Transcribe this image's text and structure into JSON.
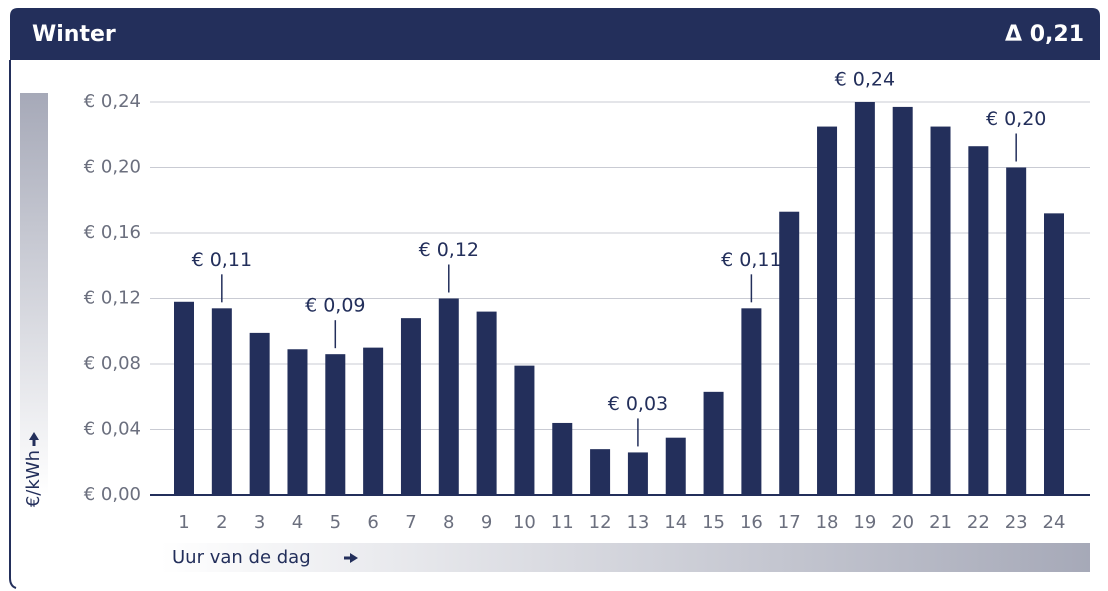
{
  "chart_data": {
    "type": "bar",
    "title": "Winter",
    "delta": "Δ 0,21",
    "ylabel": "€/kWh",
    "xlabel": "Uur van de dag",
    "categories": [
      "1",
      "2",
      "3",
      "4",
      "5",
      "6",
      "7",
      "8",
      "9",
      "10",
      "11",
      "12",
      "13",
      "14",
      "15",
      "16",
      "17",
      "18",
      "19",
      "20",
      "21",
      "22",
      "23",
      "24"
    ],
    "values": [
      0.118,
      0.114,
      0.099,
      0.089,
      0.086,
      0.09,
      0.108,
      0.12,
      0.112,
      0.079,
      0.044,
      0.028,
      0.026,
      0.035,
      0.063,
      0.114,
      0.173,
      0.225,
      0.24,
      0.237,
      0.225,
      0.213,
      0.2,
      0.172
    ],
    "value_labels": [
      null,
      "€ 0,11",
      null,
      null,
      "€ 0,09",
      null,
      null,
      "€ 0,12",
      null,
      null,
      null,
      null,
      "€ 0,03",
      null,
      null,
      "€ 0,11",
      null,
      null,
      "€ 0,24",
      null,
      null,
      null,
      "€ 0,20",
      null
    ],
    "color": "#232f5b",
    "ylim": [
      0,
      0.24
    ],
    "yticks": [
      {
        "value": 0,
        "label": "€ 0,00"
      },
      {
        "value": 0.04,
        "label": "€ 0,04"
      },
      {
        "value": 0.08,
        "label": "€ 0,08"
      },
      {
        "value": 0.12,
        "label": "€ 0,12"
      },
      {
        "value": 0.16,
        "label": "€ 0,16"
      },
      {
        "value": 0.2,
        "label": "€ 0,20"
      },
      {
        "value": 0.24,
        "label": "€ 0,24"
      }
    ],
    "grid": true
  }
}
